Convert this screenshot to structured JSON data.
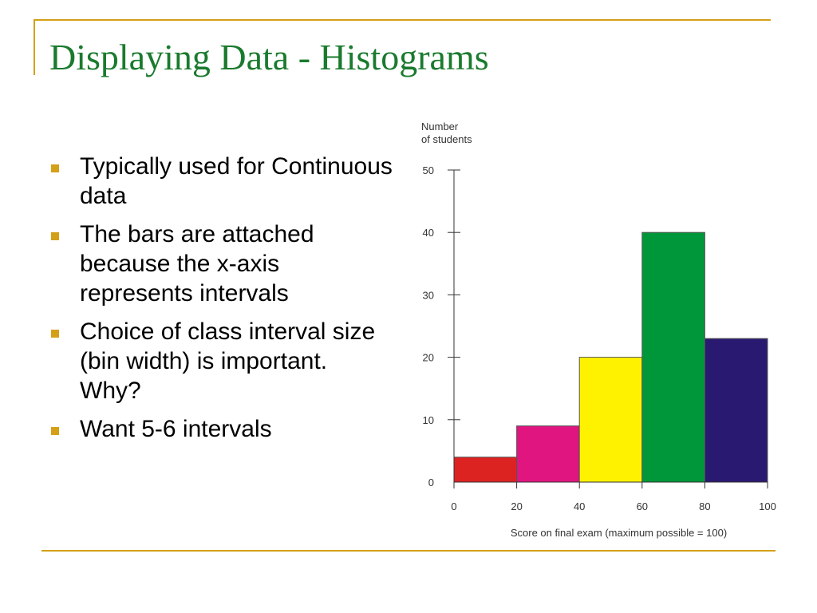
{
  "slide": {
    "title": "Displaying Data - Histograms",
    "bullets": [
      "Typically used for Continuous data",
      "The bars are attached because the x-axis represents intervals",
      "Choice of class interval size (bin width) is important. Why?",
      "Want 5-6 intervals"
    ]
  },
  "chart_data": {
    "type": "bar",
    "ylabel_lines": [
      "Number",
      "of students"
    ],
    "xlabel": "Score on final exam (maximum possible = 100)",
    "bins": [
      {
        "from": 0,
        "to": 20,
        "value": 4,
        "color": "#dd2222"
      },
      {
        "from": 20,
        "to": 40,
        "value": 9,
        "color": "#e0157f"
      },
      {
        "from": 40,
        "to": 60,
        "value": 20,
        "color": "#fff200"
      },
      {
        "from": 60,
        "to": 80,
        "value": 40,
        "color": "#00973a"
      },
      {
        "from": 80,
        "to": 100,
        "value": 23,
        "color": "#2a1970"
      }
    ],
    "xticks": [
      "0",
      "20",
      "40",
      "60",
      "80",
      "100"
    ],
    "yticks": [
      "0",
      "10",
      "20",
      "30",
      "40",
      "50"
    ],
    "xlim": [
      0,
      100
    ],
    "ylim": [
      0,
      50
    ],
    "grid": false,
    "legend": "none"
  },
  "colors": {
    "title": "#1a7a2e",
    "accent": "#d4a017"
  }
}
